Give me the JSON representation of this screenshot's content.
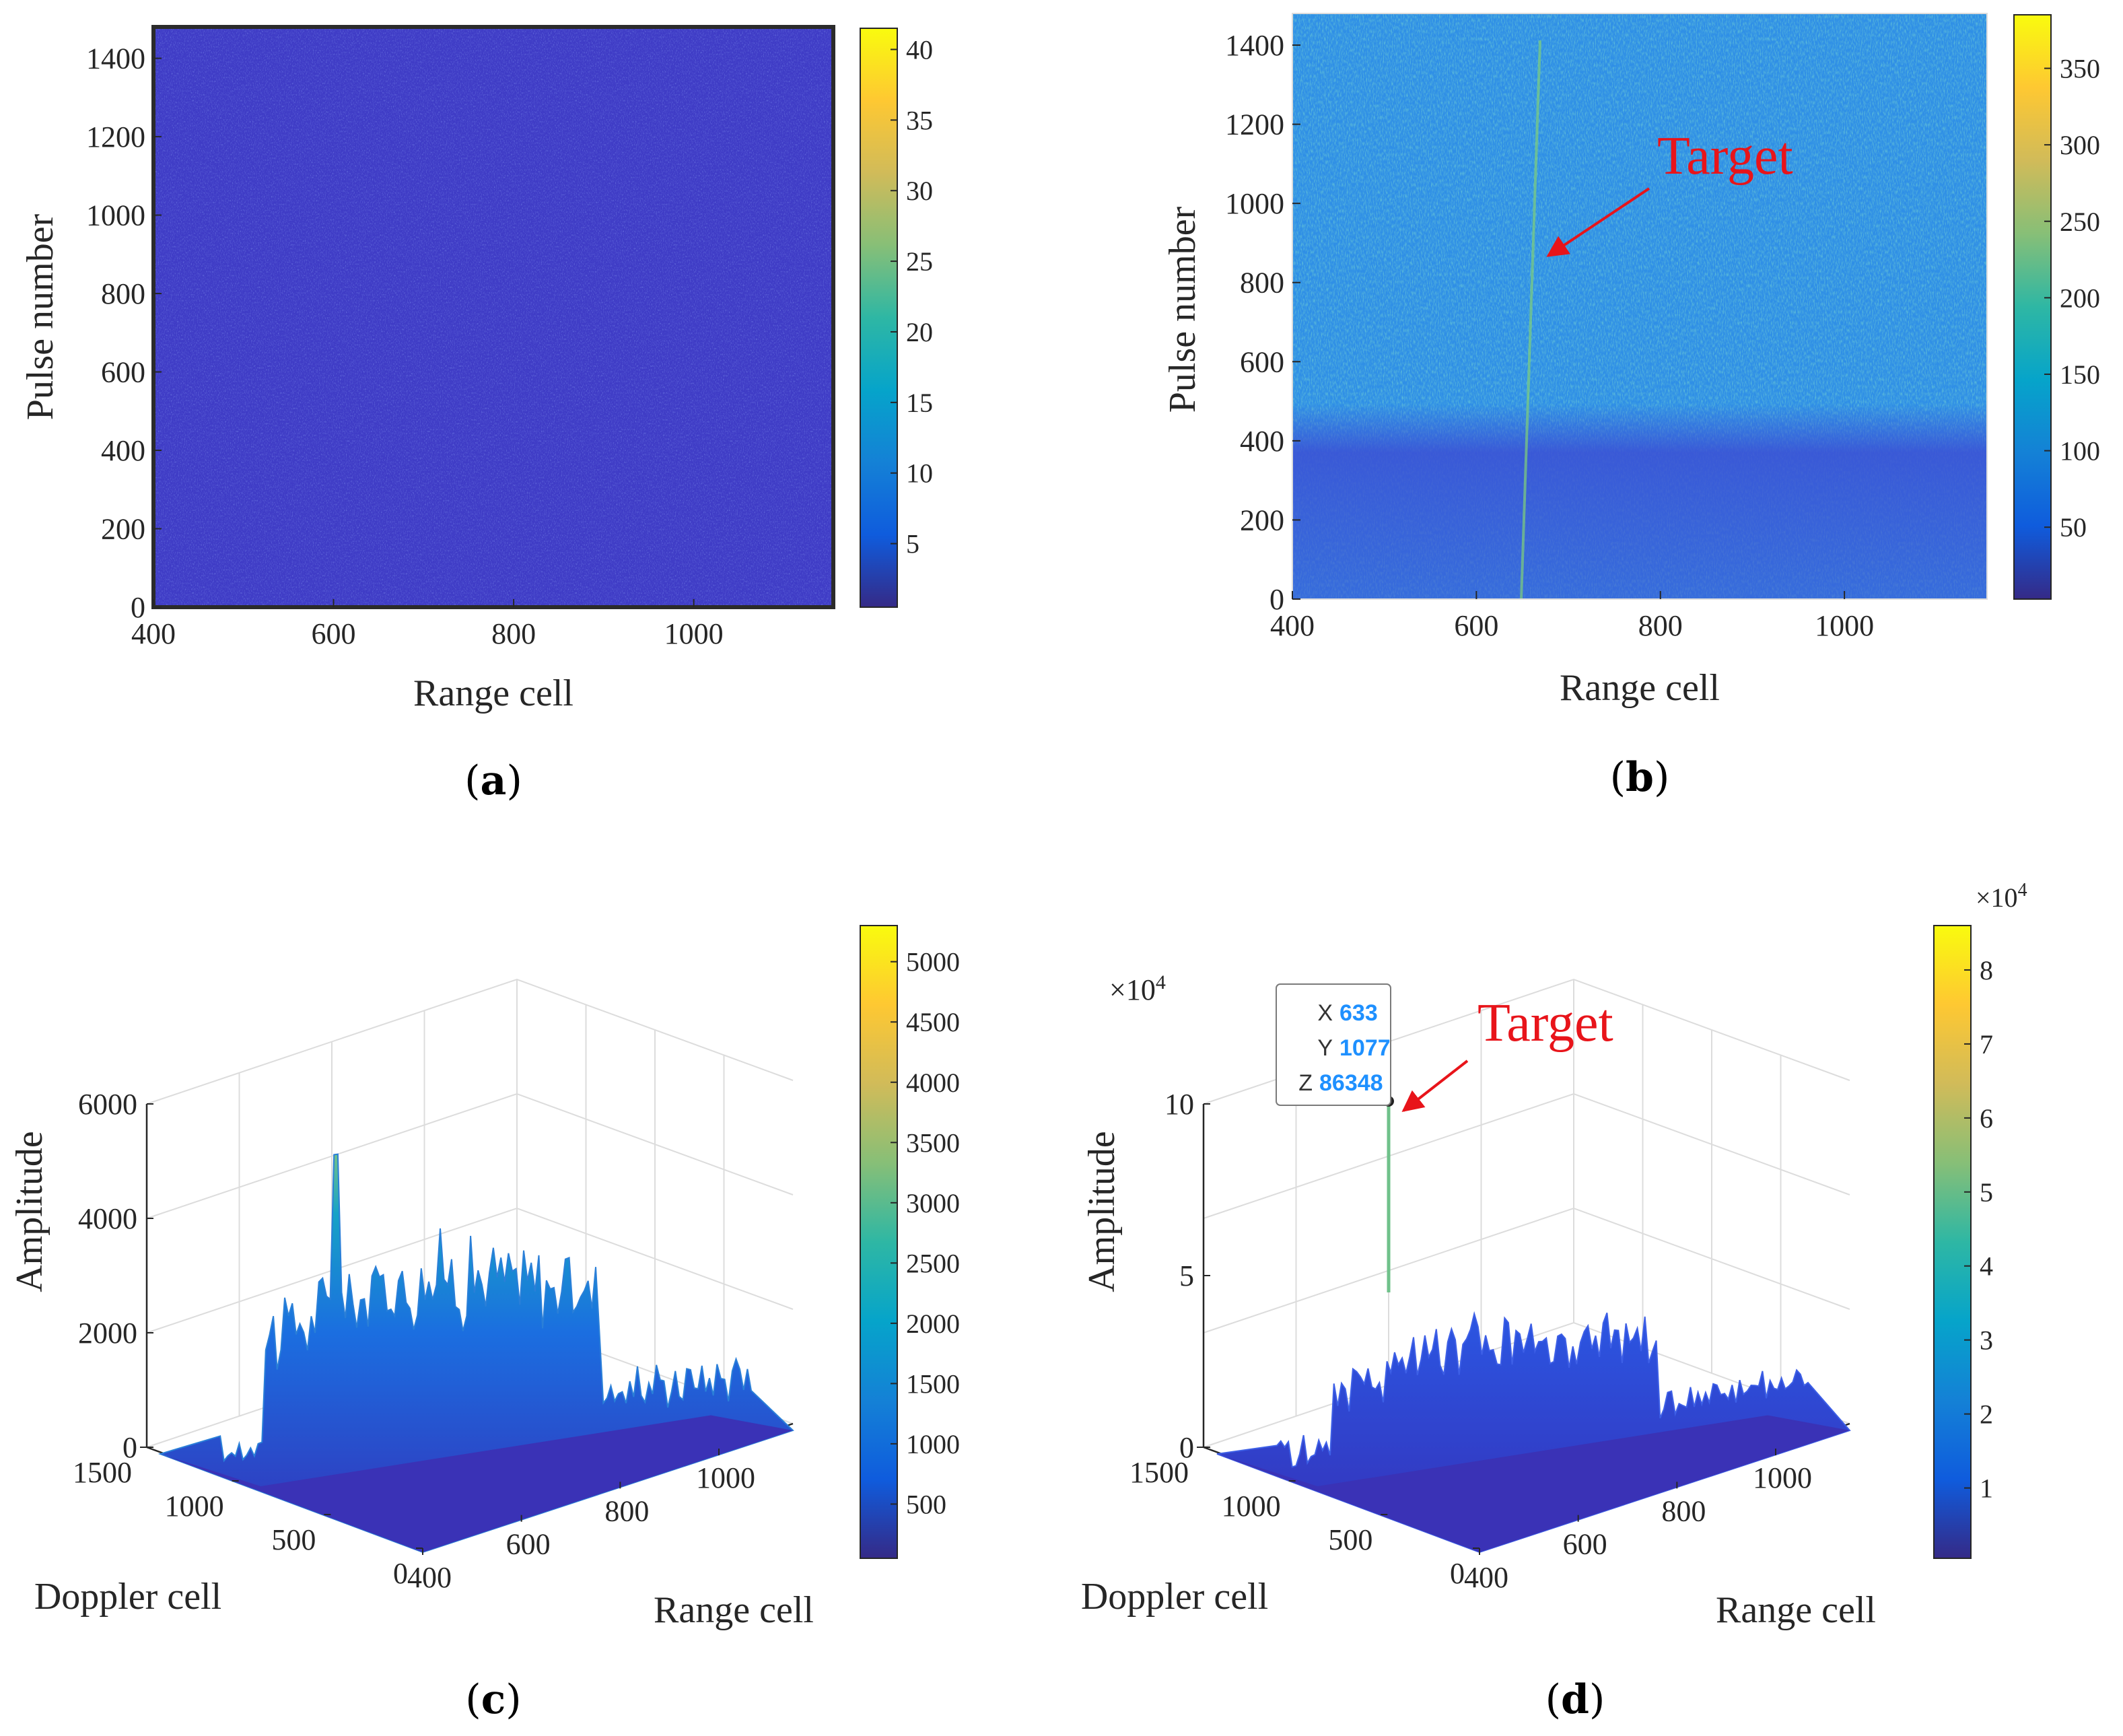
{
  "chart_data": [
    {
      "id": "a",
      "type": "heatmap",
      "panel_label": "a",
      "xlabel": "Range cell",
      "ylabel": "Pulse number",
      "xlim": [
        400,
        1155
      ],
      "ylim": [
        0,
        1480
      ],
      "xticks": [
        400,
        600,
        800,
        1000
      ],
      "yticks": [
        0,
        200,
        400,
        600,
        800,
        1000,
        1200,
        1400
      ],
      "colorbar": {
        "range": [
          0.5,
          41.5
        ],
        "ticks": [
          5,
          10,
          15,
          20,
          25,
          30,
          35,
          40
        ]
      },
      "colors": {
        "background": "#3f3cc6",
        "speckle": "#4a5fe0",
        "frame": "#2b2b2b"
      }
    },
    {
      "id": "b",
      "type": "heatmap",
      "panel_label": "b",
      "xlabel": "Range cell",
      "ylabel": "Pulse number",
      "xlim": [
        400,
        1155
      ],
      "ylim": [
        0,
        1480
      ],
      "xticks": [
        400,
        600,
        800,
        1000
      ],
      "yticks": [
        0,
        200,
        400,
        600,
        800,
        1000,
        1200,
        1400
      ],
      "colorbar": {
        "range": [
          3,
          385
        ],
        "ticks": [
          50,
          100,
          150,
          200,
          250,
          300,
          350
        ]
      },
      "annotation": {
        "text": "Target",
        "target_point": [
          660,
          880
        ]
      },
      "colors": {
        "background": "#2f8fe6",
        "low_band": "#3b4fd4",
        "speckle": "#36b2b0"
      }
    },
    {
      "id": "c",
      "type": "surface",
      "panel_label": "c",
      "xlabel": "Range cell",
      "ylabel": "Doppler cell",
      "zlabel": "Amplitude",
      "xticks": [
        400,
        600,
        800,
        1000
      ],
      "yticks": [
        0,
        500,
        1000,
        1500
      ],
      "zticks": [
        0,
        2000,
        4000,
        6000
      ],
      "zlim": [
        0,
        6000
      ],
      "colorbar": {
        "range": [
          50,
          5300
        ],
        "ticks": [
          500,
          1000,
          1500,
          2000,
          2500,
          3000,
          3500,
          4000,
          4500,
          5000
        ]
      }
    },
    {
      "id": "d",
      "type": "surface",
      "panel_label": "d",
      "xlabel": "Range cell",
      "ylabel": "Doppler cell",
      "zlabel": "Amplitude",
      "xticks": [
        400,
        600,
        800,
        1000
      ],
      "yticks": [
        0,
        500,
        1000,
        1500
      ],
      "zticks": [
        0,
        5,
        10
      ],
      "z_multiplier": "×10",
      "z_exponent": "4",
      "colorbar": {
        "range": [
          0.05,
          8.6
        ],
        "ticks": [
          1,
          2,
          3,
          4,
          5,
          6,
          7,
          8
        ],
        "multiplier": "×10",
        "exponent": "4"
      },
      "annotation": {
        "text": "Target"
      },
      "datatip": {
        "x_key": "X",
        "x": 633,
        "y_key": "Y",
        "y": 1077,
        "z_key": "Z",
        "z": 86348
      }
    }
  ],
  "parula": [
    "#352a87",
    "#0f5cdd",
    "#1481d6",
    "#06a4ca",
    "#2eb7a4",
    "#87bf77",
    "#d1bb59",
    "#fec832",
    "#f9fb0e"
  ]
}
